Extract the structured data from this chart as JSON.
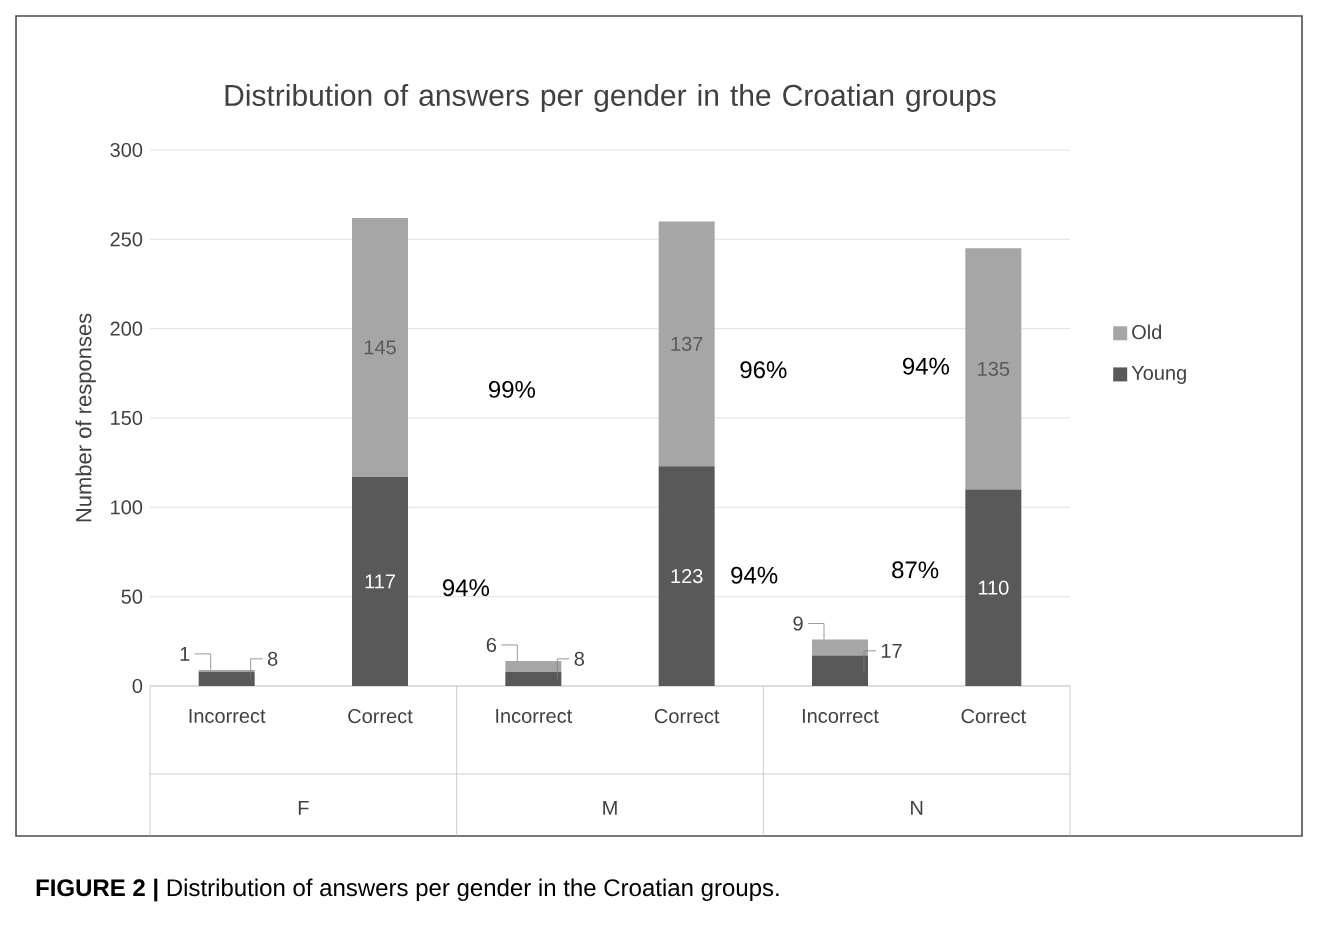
{
  "chart_data": {
    "type": "bar",
    "stacked": true,
    "title": "Distribution of answers per gender in the Croatian groups",
    "ylabel": "Number of responses",
    "categories": [
      "Incorrect",
      "Correct",
      "Incorrect",
      "Correct",
      "Incorrect",
      "Correct"
    ],
    "series": [
      {
        "name": "Young",
        "color": "#595959",
        "values": [
          8,
          117,
          8,
          123,
          17,
          110
        ]
      },
      {
        "name": "Old",
        "color": "#a6a6a6",
        "values": [
          1,
          145,
          6,
          137,
          9,
          135
        ]
      }
    ],
    "ylim": [
      0,
      300
    ],
    "yticks": [
      0,
      50,
      100,
      150,
      200,
      250,
      300
    ],
    "grid": "y",
    "legend": "right",
    "data_labels": true,
    "annotations": [
      "94%",
      "99%",
      "96%",
      "94%",
      "87%",
      "94%",
      "F",
      "M",
      "N",
      "**FIGURE 2 |** Distribution of answers per gender in the Croatian groups."
    ]
  }
}
